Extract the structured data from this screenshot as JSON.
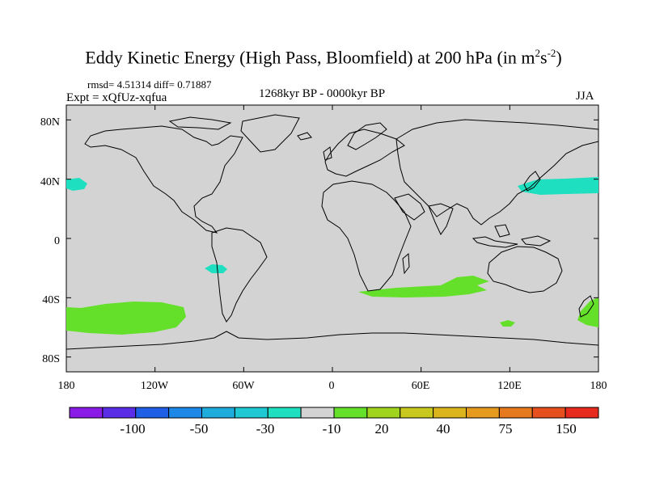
{
  "title": {
    "main": "Eddy Kinetic Energy (High Pass, Bloomfield) at 200 hPa (in m",
    "sup1": "2",
    "mid": "s",
    "sup2": "-2",
    "close": ")"
  },
  "stats": "rmsd= 4.51314  diff= 0.71887",
  "expt": "Expt = xQfUz-xqfua",
  "period": "1268kyr BP - 0000kyr BP",
  "season": "JJA",
  "map": {
    "background_color": "#d3d3d3",
    "y_ticks": [
      "80N",
      "40N",
      "0",
      "40S",
      "80S"
    ],
    "x_ticks": [
      "180",
      "120W",
      "60W",
      "0",
      "60E",
      "120E",
      "180"
    ],
    "anomaly_regions": [
      {
        "name": "north-atlantic-west",
        "level": "-10",
        "color": "#1ee0c0"
      },
      {
        "name": "north-pacific",
        "level": "-10",
        "color": "#1ee0c0"
      },
      {
        "name": "southeast-pacific",
        "level": "-10",
        "color": "#1ee0c0"
      },
      {
        "name": "south-pacific",
        "level": "20",
        "color": "#64e02a"
      },
      {
        "name": "south-indian-ocean",
        "level": "20",
        "color": "#64e02a"
      },
      {
        "name": "south-of-australia",
        "level": "20",
        "color": "#64e02a"
      },
      {
        "name": "southwest-pacific",
        "level": "20",
        "color": "#64e02a"
      }
    ]
  },
  "colorbar": {
    "labels": [
      "-100",
      "-50",
      "-30",
      "-10",
      "20",
      "40",
      "75",
      "150"
    ],
    "colors": [
      "#8a1ae6",
      "#5a2ee6",
      "#1e5fe6",
      "#1e88e6",
      "#1eacdc",
      "#1ec8d4",
      "#1ee0c0",
      "#d3d3d3",
      "#64e02a",
      "#a0d41e",
      "#c8c81e",
      "#dcb41e",
      "#e69a1e",
      "#e6781e",
      "#e6501e",
      "#e62a1e"
    ]
  }
}
